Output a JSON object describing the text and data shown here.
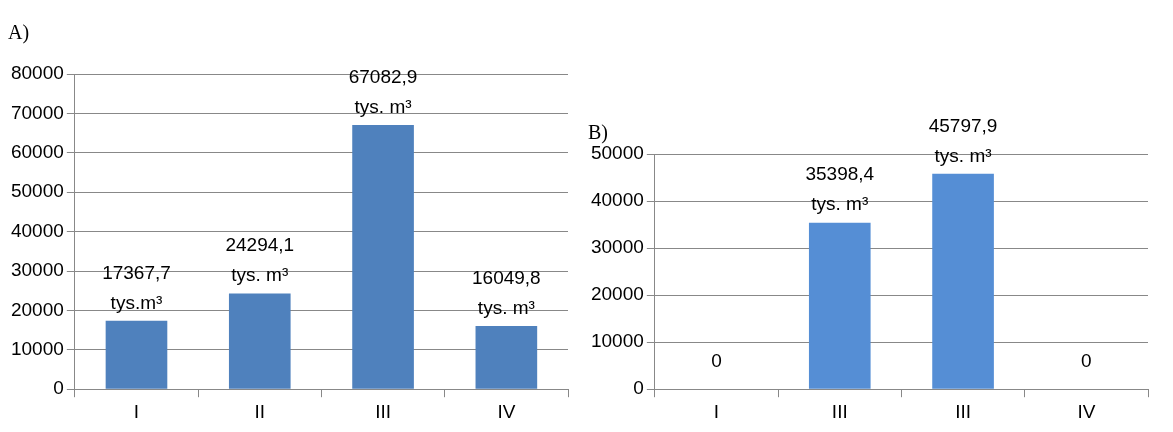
{
  "chart_data": [
    {
      "type": "bar",
      "title": "A)",
      "categories": [
        "I",
        "II",
        "III",
        "IV"
      ],
      "values": [
        17367.7,
        24294.1,
        67082.9,
        16049.8
      ],
      "color": "#4f81bd",
      "value_labels": [
        "17367,7\ntys.m³",
        "24294,1\ntys. m³",
        "67082,9\ntys. m³",
        "16049,8\ntys. m³"
      ],
      "ylim": [
        0,
        80000
      ],
      "yticks": [
        0,
        10000,
        20000,
        30000,
        40000,
        50000,
        60000,
        70000,
        80000
      ],
      "grid": "y"
    },
    {
      "type": "bar",
      "title": "B)",
      "categories": [
        "I",
        "III",
        "III",
        "IV"
      ],
      "values": [
        0,
        35398.4,
        45797.9,
        0
      ],
      "color": "#558ed5",
      "value_labels": [
        "0",
        "35398,4\ntys. m³",
        "45797,9\ntys. m³",
        "0"
      ],
      "ylim": [
        0,
        50000
      ],
      "yticks": [
        0,
        10000,
        20000,
        30000,
        40000,
        50000
      ],
      "grid": "y"
    }
  ]
}
